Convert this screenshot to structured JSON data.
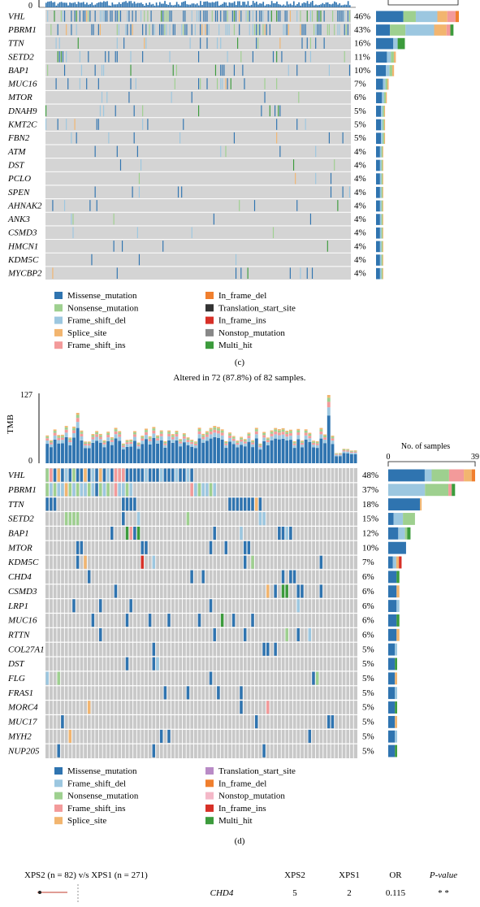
{
  "colors": {
    "Missense_mutation": "#2f74b0",
    "Nonsense_mutation": "#9ed08f",
    "Frame_shift_del": "#9cc7e0",
    "Splice_site": "#f2b56f",
    "Frame_shift_ins": "#f39a9a",
    "In_frame_del": "#f07f2e",
    "Translation_start_site_c": "#333333",
    "Translation_start_site_d": "#b98bc6",
    "In_frame_ins": "#d73027",
    "Nonstop_mutation_c": "#888888",
    "Nonstop_mutation_d": "#f4b8c8",
    "Multi_hit": "#3c9b3c",
    "empty": "#d4d4d4"
  },
  "panel_c": {
    "caption": "(c)",
    "genes": [
      {
        "name": "VHL",
        "pct": "46%"
      },
      {
        "name": "PBRM1",
        "pct": "43%"
      },
      {
        "name": "TTN",
        "pct": "16%"
      },
      {
        "name": "SETD2",
        "pct": "11%"
      },
      {
        "name": "BAP1",
        "pct": "10%"
      },
      {
        "name": "MUC16",
        "pct": "7%"
      },
      {
        "name": "MTOR",
        "pct": "6%"
      },
      {
        "name": "DNAH9",
        "pct": "5%"
      },
      {
        "name": "KMT2C",
        "pct": "5%"
      },
      {
        "name": "FBN2",
        "pct": "5%"
      },
      {
        "name": "ATM",
        "pct": "4%"
      },
      {
        "name": "DST",
        "pct": "4%"
      },
      {
        "name": "PCLO",
        "pct": "4%"
      },
      {
        "name": "SPEN",
        "pct": "4%"
      },
      {
        "name": "AHNAK2",
        "pct": "4%"
      },
      {
        "name": "ANK3",
        "pct": "4%"
      },
      {
        "name": "CSMD3",
        "pct": "4%"
      },
      {
        "name": "HMCN1",
        "pct": "4%"
      },
      {
        "name": "KDM5C",
        "pct": "4%"
      },
      {
        "name": "MYCBP2",
        "pct": "4%"
      }
    ],
    "tmb_zero": "0",
    "legend_left": [
      "Missense_mutation",
      "Nonsense_mutation",
      "Frame_shift_del",
      "Splice_site",
      "Frame_shift_ins"
    ],
    "legend_right": [
      "In_frame_del",
      "Translation_start_site",
      "In_frame_ins",
      "Nonstop_mutation",
      "Multi_hit"
    ]
  },
  "panel_d": {
    "caption": "(d)",
    "title": "Altered in 72 (87.8%) of 82 samples.",
    "tmb_label": "TMB",
    "tmb_max": "127",
    "tmb_zero": "0",
    "samples_label": "No. of samples",
    "samples_min": "0",
    "samples_max": "39",
    "genes": [
      {
        "name": "VHL",
        "pct": "48%"
      },
      {
        "name": "PBRM1",
        "pct": "37%"
      },
      {
        "name": "TTN",
        "pct": "18%"
      },
      {
        "name": "SETD2",
        "pct": "15%"
      },
      {
        "name": "BAP1",
        "pct": "12%"
      },
      {
        "name": "MTOR",
        "pct": "10%"
      },
      {
        "name": "KDM5C",
        "pct": "7%"
      },
      {
        "name": "CHD4",
        "pct": "6%"
      },
      {
        "name": "CSMD3",
        "pct": "6%"
      },
      {
        "name": "LRP1",
        "pct": "6%"
      },
      {
        "name": "MUC16",
        "pct": "6%"
      },
      {
        "name": "RTTN",
        "pct": "6%"
      },
      {
        "name": "COL27A1",
        "pct": "5%"
      },
      {
        "name": "DST",
        "pct": "5%"
      },
      {
        "name": "FLG",
        "pct": "5%"
      },
      {
        "name": "FRAS1",
        "pct": "5%"
      },
      {
        "name": "MORC4",
        "pct": "5%"
      },
      {
        "name": "MUC17",
        "pct": "5%"
      },
      {
        "name": "MYH2",
        "pct": "5%"
      },
      {
        "name": "NUP205",
        "pct": "5%"
      }
    ],
    "legend_left": [
      "Missense_mutation",
      "Frame_shift_del",
      "Nonsense_mutation",
      "Frame_shift_ins",
      "Splice_site"
    ],
    "legend_right": [
      "Translation_start_site",
      "In_frame_del",
      "Nonstop_mutation",
      "In_frame_ins",
      "Multi_hit"
    ]
  },
  "panel_e": {
    "comparison": "XPS2 (n = 82) v/s XPS1 (n = 271)",
    "col_xps2": "XPS2",
    "col_xps1": "XPS1",
    "col_or": "OR",
    "col_p": "P-value",
    "row": {
      "gene": "CHD4",
      "xps2": "5",
      "xps1": "2",
      "or": "0.115",
      "p": "* *"
    }
  },
  "chart_data": [
    {
      "type": "table",
      "title": "",
      "genes": [
        "VHL",
        "PBRM1",
        "TTN",
        "SETD2",
        "BAP1",
        "MUC16",
        "MTOR",
        "DNAH9",
        "KMT2C",
        "FBN2",
        "ATM",
        "DST",
        "PCLO",
        "SPEN",
        "AHNAK2",
        "ANK3",
        "CSMD3",
        "HMCN1",
        "KDM5C",
        "MYCBP2"
      ],
      "altered_pct": [
        46,
        43,
        16,
        11,
        10,
        7,
        6,
        5,
        5,
        5,
        4,
        4,
        4,
        4,
        4,
        4,
        4,
        4,
        4,
        4
      ]
    },
    {
      "type": "table",
      "title": "Altered in 72 (87.8%) of 82 samples.",
      "genes": [
        "VHL",
        "PBRM1",
        "TTN",
        "SETD2",
        "BAP1",
        "MTOR",
        "KDM5C",
        "CHD4",
        "CSMD3",
        "LRP1",
        "MUC16",
        "RTTN",
        "COL27A1",
        "DST",
        "FLG",
        "FRAS1",
        "MORC4",
        "MUC17",
        "MYH2",
        "NUP205"
      ],
      "altered_pct": [
        48,
        37,
        18,
        15,
        12,
        10,
        7,
        6,
        6,
        6,
        6,
        6,
        5,
        5,
        5,
        5,
        5,
        5,
        5,
        5
      ],
      "samples_xlim": [
        0,
        39
      ]
    }
  ]
}
